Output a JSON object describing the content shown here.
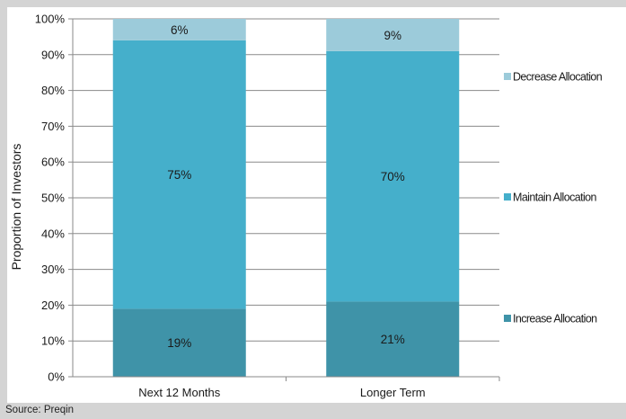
{
  "source": "Source: Preqin",
  "chart_data": {
    "type": "bar",
    "stacked": true,
    "categories": [
      "Next 12 Months",
      "Longer Term"
    ],
    "series": [
      {
        "name": "Increase Allocation",
        "values": [
          19,
          21
        ],
        "labels": [
          "19%",
          "21%"
        ],
        "color": "#3f93a8"
      },
      {
        "name": "Maintain Allocation",
        "values": [
          75,
          70
        ],
        "labels": [
          "75%",
          "70%"
        ],
        "color": "#45afcb"
      },
      {
        "name": "Decrease Allocation",
        "values": [
          6,
          9
        ],
        "labels": [
          "6%",
          "9%"
        ],
        "color": "#9ccbda"
      }
    ],
    "ylabel": "Proportion of Investors",
    "ylim": [
      0,
      100
    ],
    "yticks": [
      "0%",
      "10%",
      "20%",
      "30%",
      "40%",
      "50%",
      "60%",
      "70%",
      "80%",
      "90%",
      "100%"
    ],
    "grid": true,
    "legend": "right"
  }
}
